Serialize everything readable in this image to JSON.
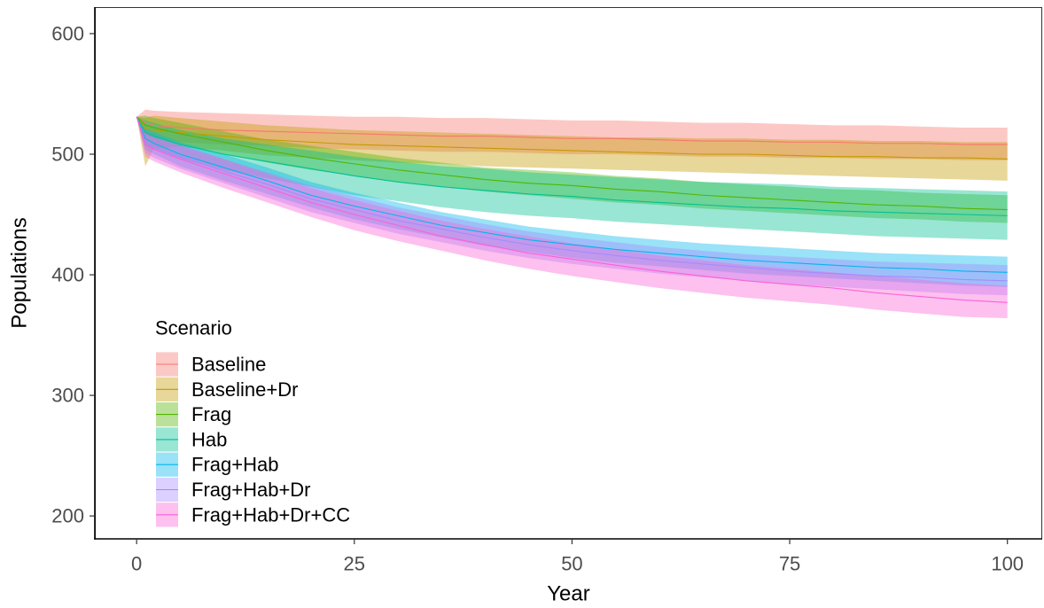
{
  "chart_data": {
    "type": "line",
    "xlabel": "Year",
    "ylabel": "Populations",
    "xlim": [
      -4.8,
      104
    ],
    "ylim": [
      181,
      622
    ],
    "x_ticks": [
      0,
      25,
      50,
      75,
      100
    ],
    "y_ticks": [
      200,
      300,
      400,
      500,
      600
    ],
    "grid": false,
    "legend": {
      "title": "Scenario",
      "position": "bottom-left"
    },
    "x": [
      0,
      1,
      2,
      5,
      10,
      15,
      20,
      25,
      30,
      35,
      40,
      45,
      50,
      55,
      60,
      65,
      70,
      75,
      80,
      85,
      90,
      95,
      100
    ],
    "series": [
      {
        "name": "Baseline",
        "color": "#F8766D",
        "values": [
          531,
          526,
          524,
          522,
          520,
          519,
          518,
          517,
          516,
          515,
          515,
          514,
          513,
          513,
          512,
          511,
          511,
          510,
          510,
          509,
          509,
          508,
          508
        ],
        "lower": [
          531,
          516,
          514,
          510,
          508,
          507,
          505,
          504,
          503,
          502,
          502,
          501,
          500,
          500,
          499,
          498,
          498,
          497,
          497,
          496,
          496,
          495,
          495
        ],
        "upper": [
          531,
          537,
          536,
          535,
          534,
          533,
          532,
          531,
          531,
          530,
          530,
          529,
          528,
          528,
          527,
          526,
          526,
          525,
          524,
          524,
          523,
          522,
          522
        ]
      },
      {
        "name": "Baseline+Dr",
        "color": "#C49A00",
        "values": [
          531,
          521,
          520,
          518,
          515,
          512,
          510,
          508,
          507,
          506,
          505,
          504,
          503,
          502,
          501,
          500,
          500,
          499,
          498,
          498,
          497,
          497,
          496
        ],
        "lower": [
          531,
          490,
          505,
          506,
          503,
          499,
          497,
          495,
          493,
          492,
          490,
          489,
          488,
          487,
          486,
          485,
          484,
          483,
          482,
          481,
          480,
          479,
          478
        ],
        "upper": [
          531,
          530,
          532,
          530,
          527,
          524,
          522,
          520,
          519,
          518,
          517,
          516,
          515,
          514,
          514,
          513,
          513,
          512,
          512,
          511,
          511,
          510,
          510
        ]
      },
      {
        "name": "Frag",
        "color": "#53B400",
        "values": [
          531,
          524,
          522,
          517,
          510,
          503,
          497,
          492,
          487,
          483,
          479,
          476,
          474,
          471,
          469,
          466,
          464,
          462,
          460,
          458,
          457,
          455,
          454
        ],
        "lower": [
          531,
          516,
          513,
          508,
          500,
          493,
          487,
          482,
          477,
          473,
          469,
          466,
          463,
          460,
          458,
          455,
          453,
          451,
          449,
          447,
          446,
          444,
          443
        ],
        "upper": [
          531,
          532,
          530,
          526,
          519,
          512,
          507,
          502,
          497,
          493,
          489,
          487,
          485,
          482,
          480,
          477,
          475,
          473,
          471,
          470,
          468,
          467,
          466
        ]
      },
      {
        "name": "Hab",
        "color": "#00C094",
        "values": [
          531,
          518,
          515,
          508,
          500,
          494,
          488,
          482,
          477,
          473,
          470,
          467,
          465,
          462,
          460,
          458,
          456,
          455,
          453,
          452,
          451,
          450,
          449
        ],
        "lower": [
          531,
          508,
          504,
          496,
          487,
          480,
          473,
          466,
          461,
          456,
          452,
          449,
          447,
          444,
          442,
          440,
          438,
          436,
          434,
          432,
          431,
          430,
          429
        ],
        "upper": [
          531,
          528,
          526,
          520,
          513,
          508,
          503,
          498,
          494,
          490,
          488,
          485,
          483,
          481,
          479,
          477,
          476,
          475,
          473,
          472,
          471,
          470,
          469
        ]
      },
      {
        "name": "Frag+Hab",
        "color": "#00B6EB",
        "values": [
          531,
          513,
          509,
          500,
          489,
          478,
          466,
          457,
          449,
          441,
          435,
          429,
          425,
          421,
          418,
          415,
          412,
          410,
          408,
          406,
          405,
          403,
          402
        ],
        "lower": [
          531,
          504,
          500,
          490,
          478,
          467,
          456,
          446,
          438,
          431,
          424,
          419,
          414,
          410,
          407,
          404,
          401,
          399,
          397,
          395,
          393,
          391,
          390
        ],
        "upper": [
          531,
          521,
          518,
          510,
          500,
          489,
          477,
          468,
          460,
          452,
          446,
          440,
          436,
          432,
          429,
          426,
          424,
          422,
          420,
          418,
          417,
          416,
          415
        ]
      },
      {
        "name": "Frag+Hab+Dr",
        "color": "#A58AFF",
        "values": [
          531,
          510,
          506,
          498,
          486,
          475,
          463,
          454,
          445,
          438,
          431,
          425,
          420,
          416,
          412,
          409,
          406,
          403,
          401,
          399,
          398,
          396,
          395
        ],
        "lower": [
          531,
          501,
          497,
          488,
          476,
          464,
          452,
          443,
          434,
          427,
          420,
          414,
          409,
          405,
          401,
          398,
          395,
          392,
          390,
          388,
          386,
          384,
          383
        ],
        "upper": [
          531,
          519,
          515,
          508,
          496,
          485,
          474,
          465,
          456,
          449,
          442,
          436,
          431,
          427,
          423,
          420,
          417,
          415,
          413,
          411,
          410,
          409,
          408
        ]
      },
      {
        "name": "Frag+Hab+Dr+CC",
        "color": "#FB61D7",
        "values": [
          531,
          508,
          504,
          496,
          484,
          472,
          460,
          450,
          441,
          432,
          425,
          418,
          413,
          408,
          403,
          399,
          395,
          392,
          389,
          385,
          382,
          379,
          377
        ],
        "lower": [
          531,
          498,
          494,
          485,
          472,
          460,
          448,
          437,
          428,
          420,
          412,
          405,
          399,
          394,
          389,
          385,
          381,
          378,
          375,
          371,
          368,
          365,
          364
        ],
        "upper": [
          531,
          518,
          514,
          507,
          496,
          484,
          472,
          462,
          453,
          445,
          438,
          432,
          426,
          421,
          416,
          412,
          408,
          405,
          402,
          399,
          396,
          393,
          391
        ]
      }
    ]
  }
}
